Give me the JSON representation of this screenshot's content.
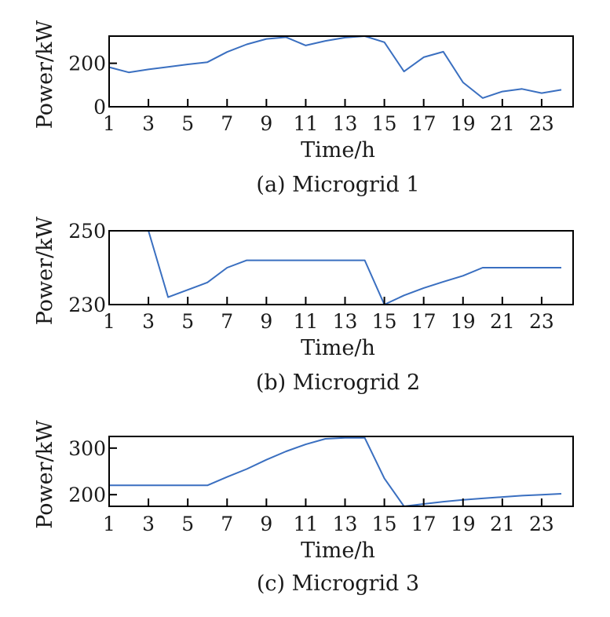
{
  "colors": {
    "series": "#3a6fc0",
    "axis": "#000000"
  },
  "chart_data": [
    {
      "type": "line",
      "caption": "(a) Microgrid 1",
      "xlabel": "Time/h",
      "ylabel": "Power/kW",
      "xlim": [
        1,
        24.6
      ],
      "ylim": [
        0,
        325
      ],
      "xticks": [
        1,
        3,
        5,
        7,
        9,
        11,
        13,
        15,
        17,
        19,
        21,
        23
      ],
      "yticks": [
        0,
        200
      ],
      "grid": false,
      "x": [
        1,
        2,
        3,
        4,
        5,
        6,
        7,
        8,
        9,
        10,
        11,
        12,
        13,
        14,
        15,
        16,
        17,
        18,
        19,
        20,
        21,
        22,
        23,
        24
      ],
      "series": [
        {
          "values": [
            182,
            158,
            172,
            183,
            195,
            205,
            252,
            287,
            312,
            320,
            282,
            303,
            318,
            325,
            297,
            162,
            228,
            253,
            112,
            40,
            70,
            82,
            63,
            78
          ]
        }
      ]
    },
    {
      "type": "line",
      "caption": "(b) Microgrid 2",
      "xlabel": "Time/h",
      "ylabel": "Power/kW",
      "xlim": [
        1,
        24.6
      ],
      "ylim": [
        230,
        250
      ],
      "xticks": [
        1,
        3,
        5,
        7,
        9,
        11,
        13,
        15,
        17,
        19,
        21,
        23
      ],
      "yticks": [
        230,
        250
      ],
      "grid": false,
      "x": [
        1,
        2,
        3,
        4,
        5,
        6,
        7,
        8,
        9,
        10,
        11,
        12,
        13,
        14,
        15,
        16,
        17,
        18,
        19,
        20,
        21,
        22,
        23,
        24
      ],
      "series": [
        {
          "values": [
            250,
            250,
            250,
            232,
            234,
            236,
            240,
            242,
            242,
            242,
            242,
            242,
            242,
            242,
            230,
            232.5,
            234.5,
            236.2,
            237.8,
            240,
            240,
            240,
            240,
            240
          ]
        }
      ]
    },
    {
      "type": "line",
      "caption": "(c) Microgrid 3",
      "xlabel": "Time/h",
      "ylabel": "Power/kW",
      "xlim": [
        1,
        24.6
      ],
      "ylim": [
        175,
        325
      ],
      "xticks": [
        1,
        3,
        5,
        7,
        9,
        11,
        13,
        15,
        17,
        19,
        21,
        23
      ],
      "yticks": [
        200,
        300
      ],
      "grid": false,
      "x": [
        1,
        2,
        3,
        4,
        5,
        6,
        7,
        8,
        9,
        10,
        11,
        12,
        13,
        14,
        15,
        16,
        17,
        18,
        19,
        20,
        21,
        22,
        23,
        24
      ],
      "series": [
        {
          "values": [
            220,
            220,
            220,
            220,
            220,
            220,
            238,
            255,
            275,
            293,
            308,
            320,
            322,
            322,
            235,
            175,
            180,
            185,
            189,
            192,
            195,
            198,
            200,
            202
          ]
        }
      ]
    }
  ]
}
